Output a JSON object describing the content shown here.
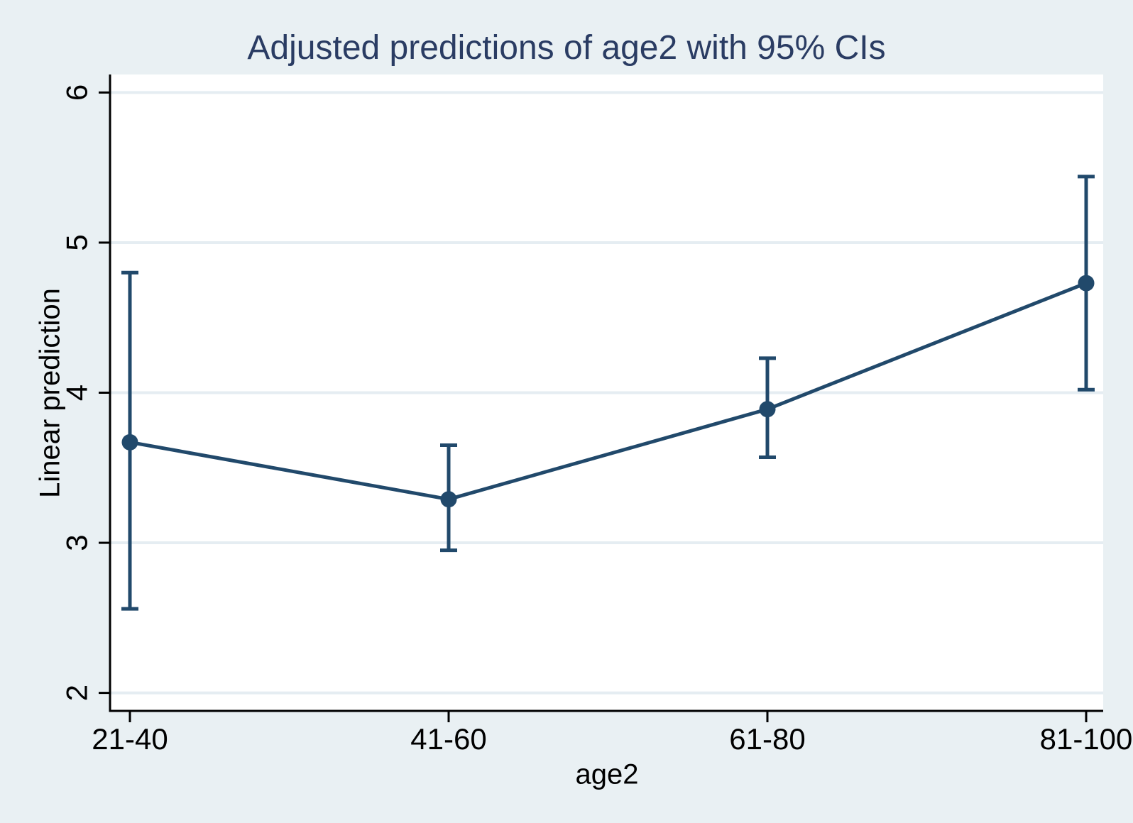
{
  "chart_data": {
    "type": "line",
    "title": "Adjusted predictions of age2 with 95% CIs",
    "xlabel": "age2",
    "ylabel": "Linear prediction",
    "categories": [
      "21-40",
      "41-60",
      "61-80",
      "81-100"
    ],
    "series": [
      {
        "name": "Linear prediction",
        "values": [
          3.67,
          3.29,
          3.89,
          4.73
        ],
        "ci_lower": [
          2.56,
          2.95,
          3.57,
          4.02
        ],
        "ci_upper": [
          4.8,
          3.65,
          4.23,
          5.44
        ]
      }
    ],
    "yticks": [
      2,
      3,
      4,
      5,
      6
    ],
    "ylim": [
      1.88,
      6.12
    ],
    "grid": true,
    "legend_position": "none",
    "marker": "circle",
    "error_bars": "95% CI"
  },
  "colors": {
    "figure_background": "#e9f0f3",
    "plot_background": "#ffffff",
    "gridline": "#e5edf2",
    "series": "#21496b",
    "title_text": "#2a3c63",
    "axis_text": "#000000",
    "axis_line": "#000000"
  }
}
